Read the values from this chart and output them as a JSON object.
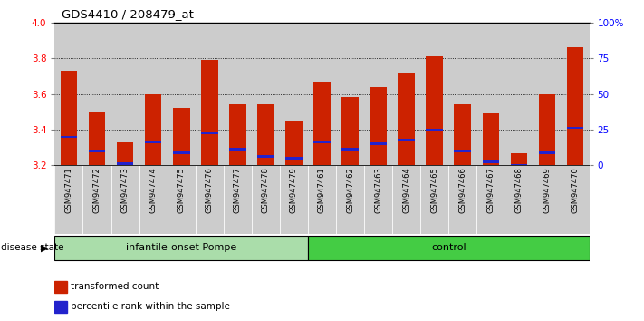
{
  "title": "GDS4410 / 208479_at",
  "samples": [
    "GSM947471",
    "GSM947472",
    "GSM947473",
    "GSM947474",
    "GSM947475",
    "GSM947476",
    "GSM947477",
    "GSM947478",
    "GSM947479",
    "GSM947461",
    "GSM947462",
    "GSM947463",
    "GSM947464",
    "GSM947465",
    "GSM947466",
    "GSM947467",
    "GSM947468",
    "GSM947469",
    "GSM947470"
  ],
  "red_values": [
    3.73,
    3.5,
    3.33,
    3.6,
    3.52,
    3.79,
    3.54,
    3.54,
    3.45,
    3.67,
    3.58,
    3.64,
    3.72,
    3.81,
    3.54,
    3.49,
    3.27,
    3.6,
    3.86
  ],
  "blue_values": [
    3.36,
    3.28,
    3.21,
    3.33,
    3.27,
    3.38,
    3.29,
    3.25,
    3.24,
    3.33,
    3.29,
    3.32,
    3.34,
    3.4,
    3.28,
    3.22,
    3.2,
    3.27,
    3.41
  ],
  "ylim_left": [
    3.2,
    4.0
  ],
  "ylim_right": [
    0,
    100
  ],
  "right_ticks": [
    0,
    25,
    50,
    75,
    100
  ],
  "right_tick_labels": [
    "0",
    "25",
    "50",
    "75",
    "100%"
  ],
  "left_ticks": [
    3.2,
    3.4,
    3.6,
    3.8,
    4.0
  ],
  "grid_lines": [
    3.4,
    3.6,
    3.8
  ],
  "base": 3.2,
  "bar_width": 0.6,
  "groups": [
    {
      "label": "infantile-onset Pompe",
      "start": 0,
      "end": 9,
      "color": "#aaddaa"
    },
    {
      "label": "control",
      "start": 9,
      "end": 19,
      "color": "#44cc44"
    }
  ],
  "bar_color": "#cc2200",
  "blue_color": "#2222cc",
  "sample_bg": "#cccccc",
  "legend_items": [
    {
      "color": "#cc2200",
      "label": "transformed count"
    },
    {
      "color": "#2222cc",
      "label": "percentile rank within the sample"
    }
  ]
}
